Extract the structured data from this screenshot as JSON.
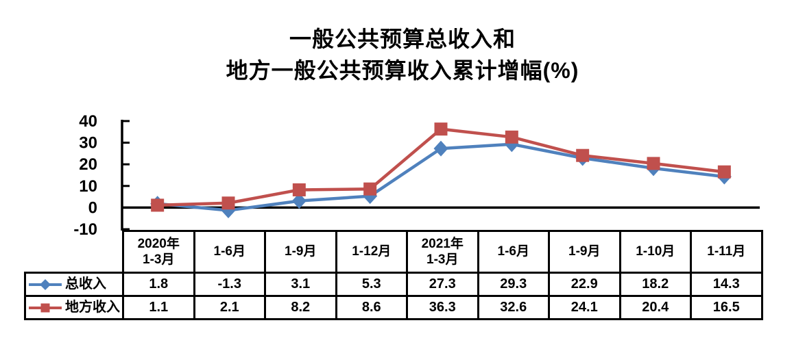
{
  "title": {
    "line1": "一般公共预算总收入和",
    "line2": "地方一般公共预算收入累计增幅(%)"
  },
  "chart_data": {
    "type": "line",
    "title": "一般公共预算总收入和地方一般公共预算收入累计增幅(%)",
    "xlabel": "",
    "ylabel": "",
    "categories": [
      "2020年\n1-3月",
      "1-6月",
      "1-9月",
      "1-12月",
      "2021年\n1-3月",
      "1-6月",
      "1-9月",
      "1-10月",
      "1-11月"
    ],
    "series": [
      {
        "name": "总收入",
        "marker": "diamond",
        "color": "#4F81BD",
        "values": [
          1.8,
          -1.3,
          3.1,
          5.3,
          27.3,
          29.3,
          22.9,
          18.2,
          14.3
        ]
      },
      {
        "name": "地方收入",
        "marker": "square",
        "color": "#C0504D",
        "values": [
          1.1,
          2.1,
          8.2,
          8.6,
          36.3,
          32.6,
          24.1,
          20.4,
          16.5
        ]
      }
    ],
    "ylim": [
      -10,
      40
    ],
    "yticks": [
      40,
      30,
      20,
      10,
      0,
      -10
    ],
    "grid": false,
    "axis_color": "#000000",
    "legend_position": "table-left",
    "show_data_table": true
  }
}
